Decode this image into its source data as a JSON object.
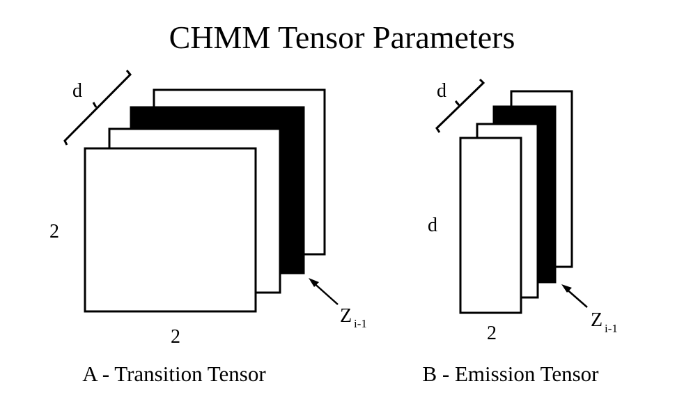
{
  "title": "CHMM Tensor Parameters",
  "colors": {
    "ink": "#000000",
    "paper": "#ffffff"
  },
  "panel_a": {
    "depth_label": "d",
    "height_label": "2",
    "width_label": "2",
    "slice_label": "Z",
    "slice_subscript": "i-1",
    "caption": "A - Transition Tensor"
  },
  "panel_b": {
    "depth_label": "d",
    "height_label": "d",
    "width_label": "2",
    "slice_label": "Z",
    "slice_subscript": "i-1",
    "caption": "B - Emission Tensor"
  }
}
